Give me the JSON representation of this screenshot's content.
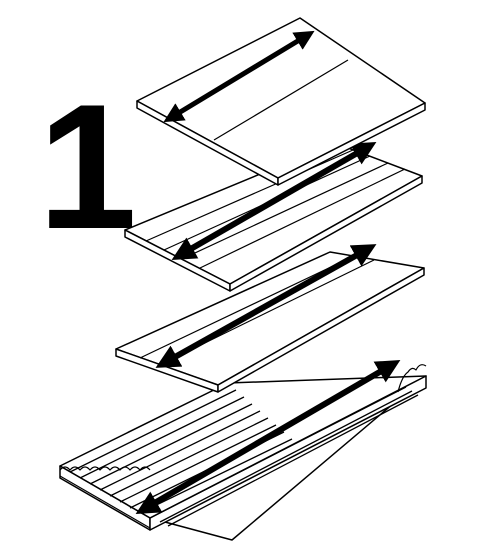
{
  "step": {
    "number": "1"
  },
  "layers": [
    {
      "id": "board-top",
      "panels": 2,
      "grooves": 0
    },
    {
      "id": "board-second",
      "panels": 5,
      "grooves": 4
    },
    {
      "id": "board-third",
      "panels": 3,
      "grooves": 2
    },
    {
      "id": "corrugated-base",
      "ribs": 9
    }
  ],
  "colors": {
    "stroke": "#000000",
    "fill": "#ffffff"
  },
  "icons": [
    "double-headed-arrow-icon"
  ]
}
